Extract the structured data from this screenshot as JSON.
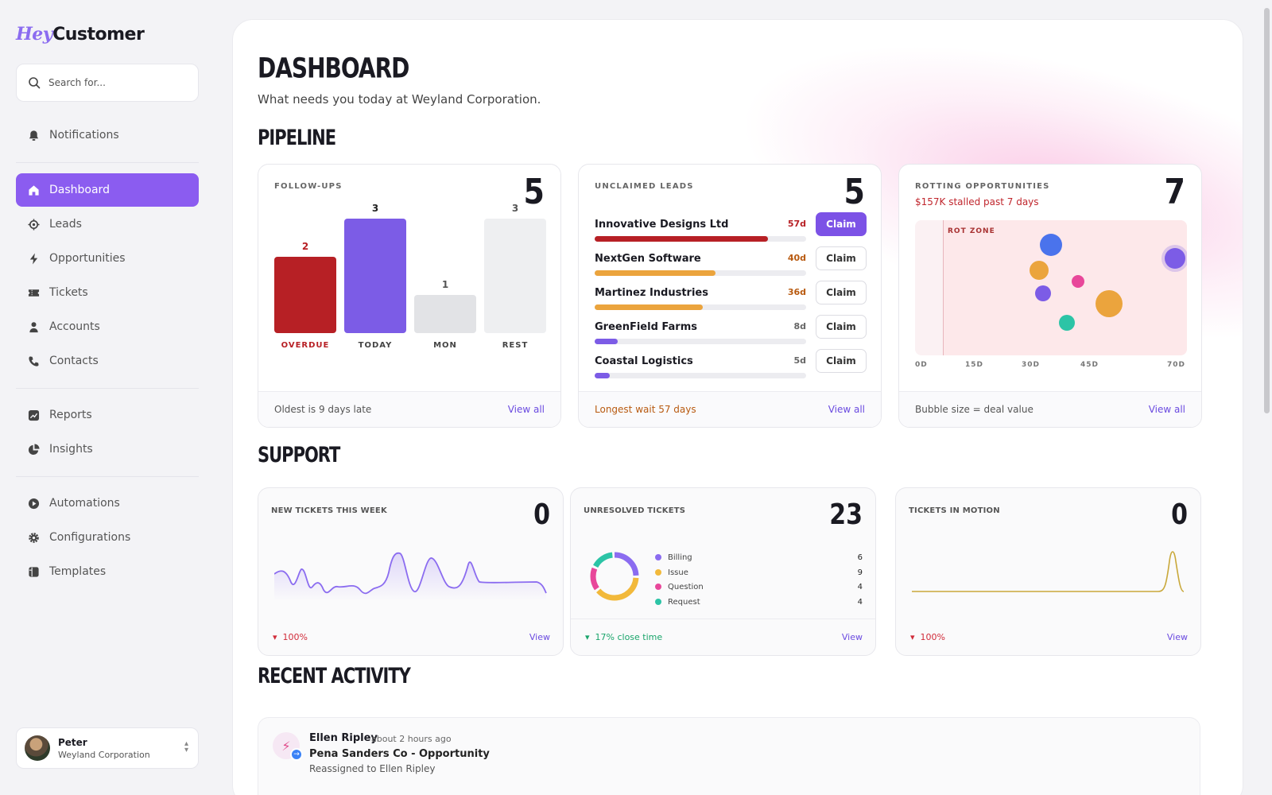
{
  "brand": {
    "hey": "Hey",
    "customer": "Customer"
  },
  "search": {
    "placeholder": "Search for..."
  },
  "nav": {
    "notifications": "Notifications",
    "dashboard": "Dashboard",
    "leads": "Leads",
    "opportunities": "Opportunities",
    "tickets": "Tickets",
    "accounts": "Accounts",
    "contacts": "Contacts",
    "reports": "Reports",
    "insights": "Insights",
    "automations": "Automations",
    "configurations": "Configurations",
    "templates": "Templates"
  },
  "user": {
    "name": "Peter",
    "org": "Weyland Corporation"
  },
  "page": {
    "title": "DASHBOARD",
    "subtitle": "What needs you today at Weyland Corporation."
  },
  "pipeline": {
    "heading": "PIPELINE",
    "followups": {
      "label": "FOLLOW-UPS",
      "count": "5",
      "bars": [
        {
          "label": "OVERDUE",
          "value": 2,
          "value_text": "2",
          "color": "#b72025",
          "text_color": "#b72025"
        },
        {
          "label": "TODAY",
          "value": 3,
          "value_text": "3",
          "color": "#7c5ce6",
          "text_color": "#222222"
        },
        {
          "label": "MON",
          "value": 1,
          "value_text": "1",
          "color": "#e2e3e6",
          "text_color": "#555555"
        },
        {
          "label": "REST",
          "value": 3,
          "value_text": "3",
          "color": "#eeeff1",
          "text_color": "#555555"
        }
      ],
      "footer": "Oldest is 9 days late",
      "link": "View all"
    },
    "unclaimed": {
      "label": "UNCLAIMED LEADS",
      "count": "5",
      "leads": [
        {
          "name": "Innovative Designs Ltd",
          "days": "57d",
          "fill": 0.82,
          "color": "#b72025",
          "days_color": "#b72025",
          "claim": "Claim",
          "primary": true
        },
        {
          "name": "NextGen Software",
          "days": "40d",
          "fill": 0.57,
          "color": "#eba43d",
          "days_color": "#b85a10",
          "claim": "Claim",
          "primary": false
        },
        {
          "name": "Martinez Industries",
          "days": "36d",
          "fill": 0.51,
          "color": "#eba43d",
          "days_color": "#b85a10",
          "claim": "Claim",
          "primary": false
        },
        {
          "name": "GreenField Farms",
          "days": "8d",
          "fill": 0.11,
          "color": "#7c5ce6",
          "days_color": "#666666",
          "claim": "Claim",
          "primary": false
        },
        {
          "name": "Coastal Logistics",
          "days": "5d",
          "fill": 0.07,
          "color": "#7c5ce6",
          "days_color": "#666666",
          "claim": "Claim",
          "primary": false
        }
      ],
      "footer": "Longest wait 57 days",
      "link": "View all"
    },
    "rotting": {
      "label": "ROTTING OPPORTUNITIES",
      "count": "7",
      "subtitle": "$157K stalled past 7 days",
      "zone_label": "ROT ZONE",
      "x_ticks": [
        "0D",
        "15D",
        "30D",
        "45D",
        "70D"
      ],
      "bubbles": [
        {
          "days": 35,
          "level": 0.82,
          "size": 14,
          "color": "#4a73ec"
        },
        {
          "days": 32,
          "level": 0.63,
          "size": 12,
          "color": "#eba43d"
        },
        {
          "days": 33,
          "level": 0.46,
          "size": 10,
          "color": "#7c5ce6"
        },
        {
          "days": 42,
          "level": 0.55,
          "size": 8,
          "color": "#e8479a"
        },
        {
          "days": 50,
          "level": 0.38,
          "size": 17,
          "color": "#eba43d"
        },
        {
          "days": 39,
          "level": 0.24,
          "size": 10,
          "color": "#2cc4a6"
        },
        {
          "days": 67,
          "level": 0.72,
          "size": 13,
          "color": "#7c5ce6"
        }
      ],
      "footer": "Bubble size = deal value",
      "link": "View all"
    }
  },
  "support": {
    "heading": "SUPPORT",
    "new_tickets": {
      "label": "NEW TICKETS THIS WEEK",
      "count": "0",
      "delta": "100%",
      "link": "View",
      "color": "#8b6cf0"
    },
    "unresolved": {
      "label": "UNRESOLVED TICKETS",
      "count": "23",
      "legend": [
        {
          "name": "Billing",
          "value": "6",
          "color": "#8b6cf0"
        },
        {
          "name": "Issue",
          "value": "9",
          "color": "#f2b93b"
        },
        {
          "name": "Question",
          "value": "4",
          "color": "#e8479a"
        },
        {
          "name": "Request",
          "value": "4",
          "color": "#2cc4a6"
        }
      ],
      "delta": "17% close time",
      "link": "View"
    },
    "in_motion": {
      "label": "TICKETS IN MOTION",
      "count": "0",
      "delta": "100%",
      "link": "View",
      "color": "#c9a83a"
    }
  },
  "activity": {
    "heading": "RECENT ACTIVITY",
    "items": [
      {
        "user": "Ellen Ripley",
        "time": "about 2 hours ago",
        "title": "Pena Sanders Co - Opportunity",
        "desc": "Reassigned to Ellen Ripley"
      }
    ]
  }
}
